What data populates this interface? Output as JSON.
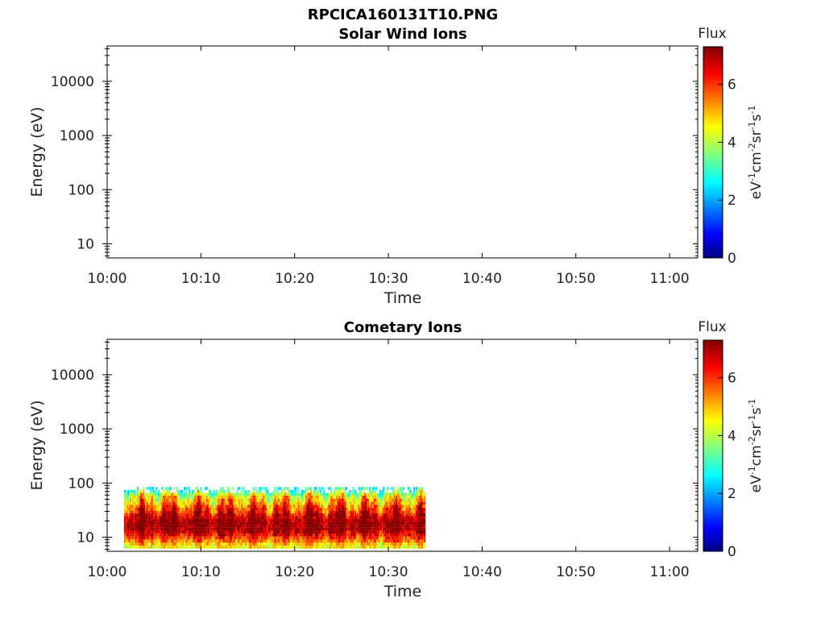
{
  "figure": {
    "title": "RPCICA160131T10.PNG"
  },
  "chart_data": [
    {
      "type": "heatmap",
      "title": "Solar Wind Ions",
      "xlabel": "Time",
      "ylabel": "Energy (eV)",
      "x_ticks": [
        "10:00",
        "10:10",
        "10:20",
        "10:30",
        "10:40",
        "10:50",
        "11:00"
      ],
      "x_range_minutes": [
        0,
        63
      ],
      "y_scale": "log",
      "y_ticks": [
        "10",
        "100",
        "1000",
        "10000"
      ],
      "y_range": [
        5.5,
        45000
      ],
      "colorbar": {
        "title": "Flux",
        "label": "eV-1cm-2sr-1s-1",
        "ticks": [
          "0",
          "2",
          "4",
          "6"
        ],
        "range": [
          0,
          7.3
        ],
        "colormap": "jet"
      },
      "data": []
    },
    {
      "type": "heatmap",
      "title": "Cometary Ions",
      "xlabel": "Time",
      "ylabel": "Energy (eV)",
      "x_ticks": [
        "10:00",
        "10:10",
        "10:20",
        "10:30",
        "10:40",
        "10:50",
        "11:00"
      ],
      "x_range_minutes": [
        0,
        63
      ],
      "y_scale": "log",
      "y_ticks": [
        "10",
        "100",
        "1000",
        "10000"
      ],
      "y_range": [
        5.5,
        45000
      ],
      "colorbar": {
        "title": "Flux",
        "label": "eV-1cm-2sr-1s-1",
        "ticks": [
          "0",
          "2",
          "4",
          "6"
        ],
        "range": [
          0,
          7.3
        ],
        "colormap": "jet"
      },
      "data": {
        "time_range_minutes": [
          1.8,
          33.9
        ],
        "energy_range_eV": [
          6,
          80
        ],
        "energy_levels_eV": [
          80,
          70,
          62,
          55,
          48,
          42,
          37,
          33,
          29,
          26,
          23,
          20.5,
          18,
          16,
          14,
          12.5,
          11,
          9.7,
          8.5,
          7.5,
          6.6
        ],
        "flux_profile": [
          2.6,
          3.4,
          4.0,
          4.6,
          5.0,
          5.3,
          5.7,
          6.0,
          6.3,
          6.7,
          6.9,
          7.1,
          7.2,
          7.2,
          7.1,
          6.9,
          6.5,
          6.0,
          5.5,
          5.0,
          4.6
        ],
        "peak_flux_energy_eV": 18
      }
    }
  ]
}
